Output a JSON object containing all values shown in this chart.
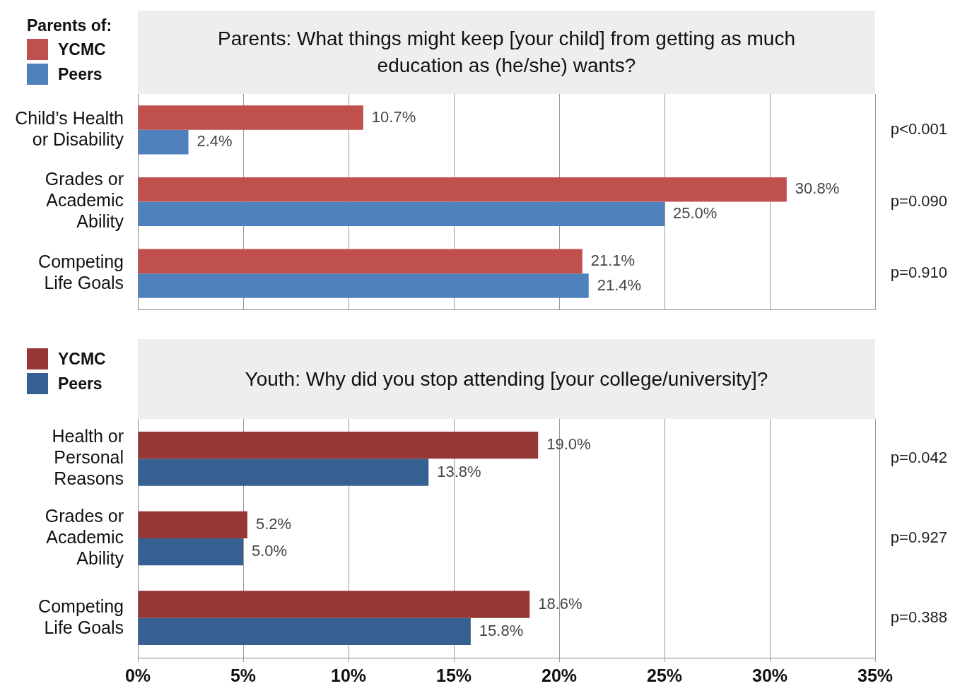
{
  "chart_data": [
    {
      "type": "bar",
      "orientation": "horizontal",
      "title": "Parents: What things might keep [your child] from getting as much education as (he/she) wants?",
      "legend_title": "Parents of:",
      "legend": "top left",
      "grid": "x",
      "tick_labels": "y",
      "categories": [
        "Child’s Health\nor Disability",
        "Grades or\nAcademic\nAbility",
        "Competing\nLife Goals"
      ],
      "series": [
        {
          "name": "YCMC",
          "color": "#c0504d",
          "values": [
            10.7,
            30.8,
            21.1
          ],
          "value_labels": [
            "10.7%",
            "30.8%",
            "21.1%"
          ]
        },
        {
          "name": "Peers",
          "color": "#4f81bd",
          "values": [
            2.4,
            25.0,
            21.4
          ],
          "value_labels": [
            "2.4%",
            "25.0%",
            "21.4%"
          ]
        }
      ],
      "xlim": [
        0,
        35
      ],
      "xticks": [
        {
          "value": 0,
          "label": null
        },
        {
          "value": 5,
          "label": null
        },
        {
          "value": 10,
          "label": null
        },
        {
          "value": 15,
          "label": null
        },
        {
          "value": 20,
          "label": null
        },
        {
          "value": 25,
          "label": null
        },
        {
          "value": 30,
          "label": null
        },
        {
          "value": 35,
          "label": null
        }
      ],
      "annotations": [
        "p<0.001",
        "p=0.090",
        "p=0.910"
      ]
    },
    {
      "type": "bar",
      "orientation": "horizontal",
      "title": "Youth: Why did you stop attending [your college/university]?",
      "legend": "top left",
      "grid": "x",
      "categories": [
        "Health or\nPersonal\nReasons",
        "Grades or\nAcademic\nAbility",
        "Competing\nLife Goals"
      ],
      "series": [
        {
          "name": "YCMC",
          "color": "#953735",
          "values": [
            19.0,
            5.2,
            18.6
          ],
          "value_labels": [
            "19.0%",
            "5.2%",
            "18.6%"
          ]
        },
        {
          "name": "Peers",
          "color": "#376092",
          "values": [
            13.8,
            5.0,
            15.8
          ],
          "value_labels": [
            "13.8%",
            "5.0%",
            "15.8%"
          ]
        }
      ],
      "xlim": [
        0,
        35
      ],
      "xticks": [
        {
          "value": 0,
          "label": "0%"
        },
        {
          "value": 5,
          "label": "5%"
        },
        {
          "value": 10,
          "label": "10%"
        },
        {
          "value": 15,
          "label": "15%"
        },
        {
          "value": 20,
          "label": "20%"
        },
        {
          "value": 25,
          "label": "25%"
        },
        {
          "value": 30,
          "label": "30%"
        },
        {
          "value": 35,
          "label": "35%"
        }
      ],
      "annotations": [
        "p=0.042",
        "p=0.927",
        "p=0.388"
      ]
    }
  ]
}
